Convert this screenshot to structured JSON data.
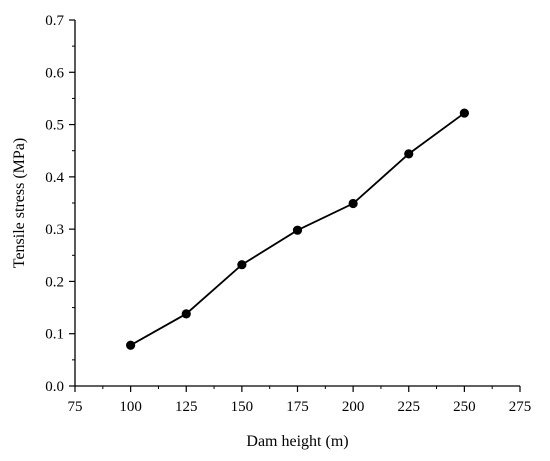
{
  "chart_data": {
    "type": "line",
    "title": "",
    "xlabel": "Dam height (m)",
    "ylabel": "Tensile stress (MPa)",
    "xlim": [
      75,
      275
    ],
    "ylim": [
      0.0,
      0.7
    ],
    "xticks": [
      75,
      100,
      125,
      150,
      175,
      200,
      225,
      250,
      275
    ],
    "xtick_labels": [
      "75",
      "100",
      "125",
      "150",
      "175",
      "200",
      "225",
      "250",
      "275"
    ],
    "yticks": [
      0.0,
      0.1,
      0.2,
      0.3,
      0.4,
      0.5,
      0.6,
      0.7
    ],
    "ytick_labels": [
      "0.0",
      "0.1",
      "0.2",
      "0.3",
      "0.4",
      "0.5",
      "0.6",
      "0.7"
    ],
    "grid": false,
    "legend": "none",
    "series": [
      {
        "x": [
          100,
          125,
          150,
          175,
          200,
          225,
          250
        ],
        "values": [
          0.078,
          0.138,
          0.232,
          0.298,
          0.349,
          0.444,
          0.522
        ],
        "color": "#000000",
        "marker": "circle"
      }
    ]
  }
}
